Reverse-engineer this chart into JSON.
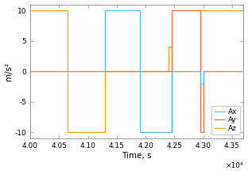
{
  "xlabel": "Time, s",
  "ylabel": "m/s²",
  "xlim": [
    40000,
    43700
  ],
  "ylim": [
    -11,
    11
  ],
  "yticks": [
    -10,
    -5,
    0,
    5,
    10
  ],
  "xticks": [
    40000,
    40500,
    41000,
    41500,
    42000,
    42500,
    43000,
    43500
  ],
  "xtick_labels": [
    "4.00",
    "4.05",
    "4.10",
    "4.15",
    "4.20",
    "4.25",
    "4.30",
    "4.35"
  ],
  "scale_label": "×10⁴",
  "legend_labels": [
    "Ax",
    "Ay",
    "Az"
  ],
  "colors": {
    "Ax": "#5BB8EC",
    "Ay": "#E8714A",
    "Az": "#F0A500"
  },
  "Ax_x": [
    40000,
    41300,
    41300,
    41900,
    41900,
    42450,
    42450,
    42950,
    42950,
    43000,
    43000,
    43700
  ],
  "Ax_y": [
    0,
    0,
    10,
    10,
    -10,
    -10,
    0,
    0,
    -2,
    -2,
    0,
    0
  ],
  "Ay_x": [
    40000,
    42450,
    42450,
    42460,
    42460,
    42950,
    42950,
    43000,
    43000,
    43700
  ],
  "Ay_y": [
    0,
    0,
    -10,
    -10,
    10,
    10,
    -10,
    -10,
    0,
    0
  ],
  "Az_x": [
    40000,
    40650,
    40650,
    41300,
    41300,
    42400,
    42400,
    42450,
    42450,
    42950,
    42950,
    43700
  ],
  "Az_y": [
    10,
    10,
    -10,
    -10,
    0,
    0,
    4,
    4,
    0,
    0,
    10,
    10
  ]
}
